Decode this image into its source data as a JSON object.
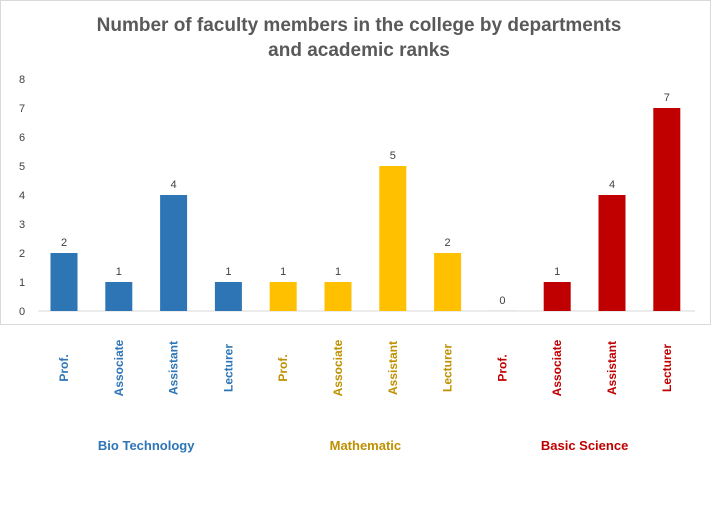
{
  "chart_data": {
    "type": "bar",
    "title_line1": "Number of faculty members in the college by departments",
    "title_line2": "and academic ranks",
    "ylim": [
      0,
      8
    ],
    "yticks": [
      0,
      1,
      2,
      3,
      4,
      5,
      6,
      7,
      8
    ],
    "grid": false,
    "groups": [
      {
        "name": "Bio Technology",
        "color": "#2e75b6",
        "categories": [
          "Prof.",
          "Associate",
          "Assistant",
          "Lecturer"
        ],
        "values": [
          2,
          1,
          4,
          1
        ]
      },
      {
        "name": "Mathematic",
        "color": "#ffc000",
        "label_color": "#bf9000",
        "categories": [
          "Prof.",
          "Associate",
          "Assistant",
          "Lecturer"
        ],
        "values": [
          1,
          1,
          5,
          2
        ]
      },
      {
        "name": "Basic Science",
        "color": "#c00000",
        "categories": [
          "Prof.",
          "Associate",
          "Assistant",
          "Lecturer"
        ],
        "values": [
          0,
          1,
          4,
          7
        ]
      }
    ]
  }
}
